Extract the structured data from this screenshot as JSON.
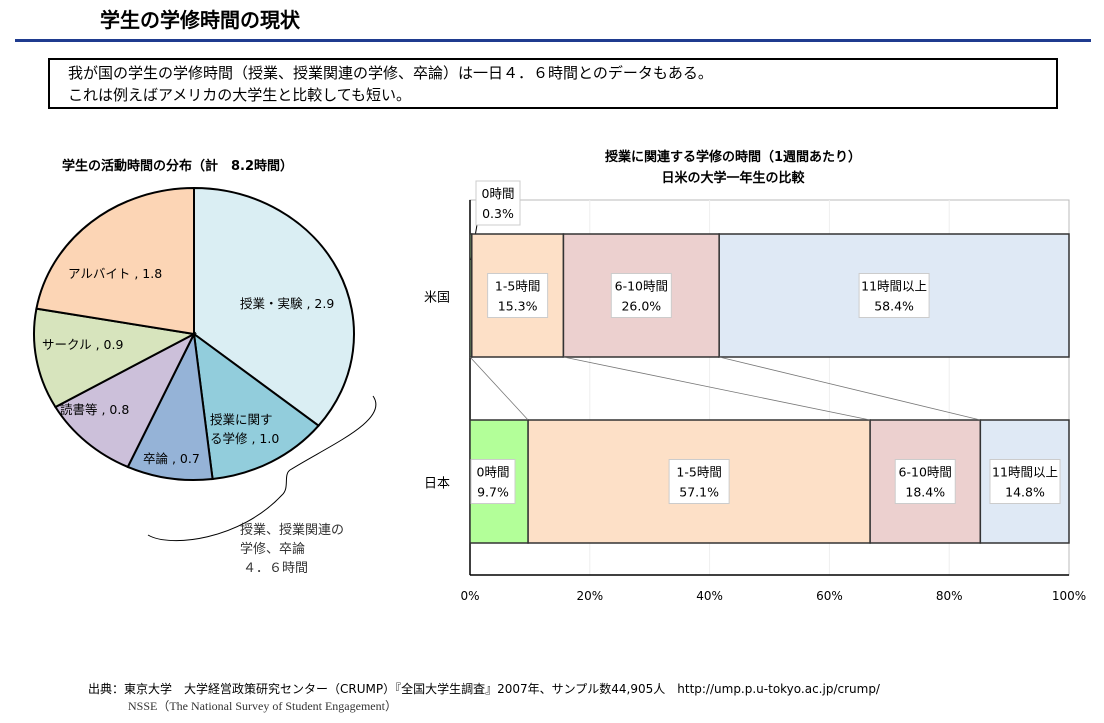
{
  "slide": {
    "title": "学生の学修時間の現状",
    "summary_lines": [
      "我が国の学生の学修時間（授業、授業関連の学修、卒論）は一日４．６時間とのデータもある。",
      "これは例えばアメリカの大学生と比較しても短い。"
    ],
    "brace_note": [
      "授業、授業関連の",
      "学修、卒論",
      "４．６時間"
    ],
    "source_line1": "出典：東京大学　大学経営政策研究センター（CRUMP）『全国大学生調査』2007年、サンプル数44,905人　http://ump.p.u-tokyo.ac.jp/crump/",
    "source_line2": "NSSE（The National Survey of Student Engagement）"
  },
  "chart_data": [
    {
      "type": "pie",
      "title": "学生の活動時間の分布（計　8.2時間）",
      "slices": [
        {
          "label": "授業・実験",
          "value": 2.9,
          "text": "授業・実験 , 2.9",
          "color": "#daeef3"
        },
        {
          "label": "授業に関する学修",
          "value": 1.0,
          "text": "授業に関す|る学修 , 1.0",
          "color": "#92cddc"
        },
        {
          "label": "卒論",
          "value": 0.7,
          "text": "卒論 , 0.7",
          "color": "#95b3d7"
        },
        {
          "label": "読書等",
          "value": 0.8,
          "text": "読書等 , 0.8",
          "color": "#ccc0da"
        },
        {
          "label": "サークル",
          "value": 0.9,
          "text": "サークル , 0.9",
          "color": "#d7e4bd"
        },
        {
          "label": "アルバイト",
          "value": 1.8,
          "text": "アルバイト , 1.8",
          "color": "#fcd5b5"
        }
      ]
    },
    {
      "type": "bar",
      "stacked": "100%",
      "orientation": "horizontal",
      "title": [
        "授業に関連する学修の時間（1週間あたり）",
        "日米の大学一年生の比較"
      ],
      "categories": [
        "米国",
        "日本"
      ],
      "series": [
        {
          "name": "0時間",
          "values": [
            0.3,
            9.7
          ],
          "color": "#b3ff99"
        },
        {
          "name": "1-5時間",
          "values": [
            15.3,
            57.1
          ],
          "color": "#fde0c7"
        },
        {
          "name": "6-10時間",
          "values": [
            26.0,
            18.4
          ],
          "color": "#ecd0cf"
        },
        {
          "name": "11時間以上",
          "values": [
            58.4,
            14.8
          ],
          "color": "#dfe9f5"
        }
      ],
      "xticks": [
        "0%",
        "20%",
        "40%",
        "60%",
        "80%",
        "100%"
      ],
      "xlim": [
        0,
        100
      ]
    }
  ]
}
